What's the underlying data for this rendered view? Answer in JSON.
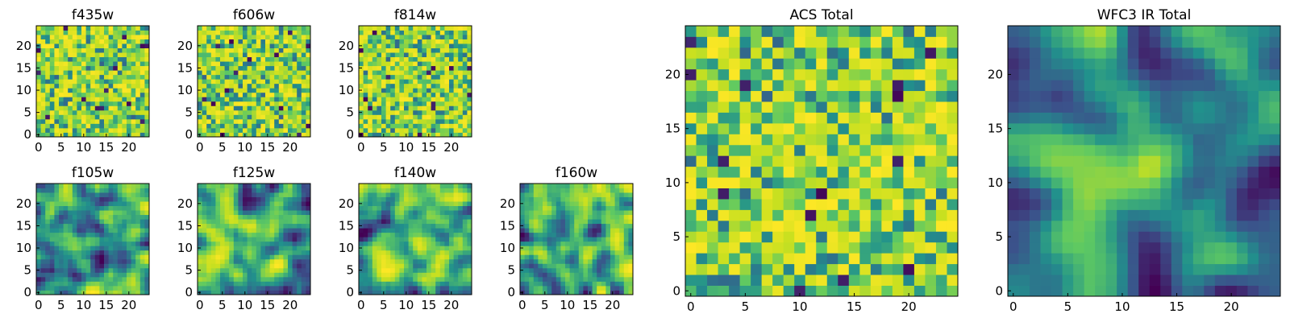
{
  "figure": {
    "description_free": true
  },
  "chart_data": [
    {
      "type": "heatmap",
      "title": "f435w",
      "xlim": [
        0,
        24
      ],
      "ylim": [
        0,
        24
      ],
      "xticks": [
        0,
        5,
        10,
        15,
        20
      ],
      "yticks": [
        0,
        5,
        10,
        15,
        20
      ],
      "colormap": [
        "#440154",
        "#3b528b",
        "#21918c",
        "#5ec962",
        "#c8e020",
        "#fde725"
      ],
      "texture": "noise",
      "seed": 11
    },
    {
      "type": "heatmap",
      "title": "f606w",
      "xlim": [
        0,
        24
      ],
      "ylim": [
        0,
        24
      ],
      "xticks": [
        0,
        5,
        10,
        15,
        20
      ],
      "yticks": [
        0,
        5,
        10,
        15,
        20
      ],
      "colormap": [
        "#440154",
        "#3b528b",
        "#21918c",
        "#5ec962",
        "#c8e020",
        "#fde725"
      ],
      "texture": "noise",
      "seed": 23
    },
    {
      "type": "heatmap",
      "title": "f814w",
      "xlim": [
        0,
        24
      ],
      "ylim": [
        0,
        24
      ],
      "xticks": [
        0,
        5,
        10,
        15,
        20
      ],
      "yticks": [
        0,
        5,
        10,
        15,
        20
      ],
      "colormap": [
        "#440154",
        "#3b528b",
        "#21918c",
        "#5ec962",
        "#c8e020",
        "#fde725"
      ],
      "texture": "noise",
      "seed": 37
    },
    {
      "type": "heatmap",
      "title": "f105w",
      "xlim": [
        0,
        24
      ],
      "ylim": [
        0,
        24
      ],
      "xticks": [
        0,
        5,
        10,
        15,
        20
      ],
      "yticks": [
        0,
        5,
        10,
        15,
        20
      ],
      "colormap": [
        "#440154",
        "#3b528b",
        "#21918c",
        "#5ec962",
        "#c8e020",
        "#fde725"
      ],
      "texture": "smooth",
      "seed": 41
    },
    {
      "type": "heatmap",
      "title": "f125w",
      "xlim": [
        0,
        24
      ],
      "ylim": [
        0,
        24
      ],
      "xticks": [
        0,
        5,
        10,
        15,
        20
      ],
      "yticks": [
        0,
        5,
        10,
        15,
        20
      ],
      "colormap": [
        "#440154",
        "#3b528b",
        "#21918c",
        "#5ec962",
        "#c8e020",
        "#fde725"
      ],
      "texture": "smooth",
      "seed": 53
    },
    {
      "type": "heatmap",
      "title": "f140w",
      "xlim": [
        0,
        24
      ],
      "ylim": [
        0,
        24
      ],
      "xticks": [
        0,
        5,
        10,
        15,
        20
      ],
      "yticks": [
        0,
        5,
        10,
        15,
        20
      ],
      "colormap": [
        "#440154",
        "#3b528b",
        "#21918c",
        "#5ec962",
        "#c8e020",
        "#fde725"
      ],
      "texture": "smooth",
      "seed": 67
    },
    {
      "type": "heatmap",
      "title": "f160w",
      "xlim": [
        0,
        24
      ],
      "ylim": [
        0,
        24
      ],
      "xticks": [
        0,
        5,
        10,
        15,
        20
      ],
      "yticks": [
        0,
        5,
        10,
        15,
        20
      ],
      "colormap": [
        "#440154",
        "#3b528b",
        "#21918c",
        "#5ec962",
        "#c8e020",
        "#fde725"
      ],
      "texture": "smooth",
      "seed": 79
    },
    {
      "type": "heatmap",
      "title": "ACS Total",
      "xlim": [
        0,
        24
      ],
      "ylim": [
        0,
        24
      ],
      "xticks": [
        0,
        5,
        10,
        15,
        20
      ],
      "yticks": [
        0,
        5,
        10,
        15,
        20
      ],
      "colormap": [
        "#440154",
        "#3b528b",
        "#21918c",
        "#5ec962",
        "#c8e020",
        "#fde725"
      ],
      "texture": "noise",
      "seed": 97
    },
    {
      "type": "heatmap",
      "title": "WFC3 IR Total",
      "xlim": [
        0,
        24
      ],
      "ylim": [
        0,
        24
      ],
      "xticks": [
        0,
        5,
        10,
        15,
        20
      ],
      "yticks": [
        0,
        5,
        10,
        15,
        20
      ],
      "colormap": [
        "#440154",
        "#3b528b",
        "#21918c",
        "#5ec962",
        "#c8e020",
        "#fde725"
      ],
      "texture": "blob",
      "seed": 101
    }
  ]
}
